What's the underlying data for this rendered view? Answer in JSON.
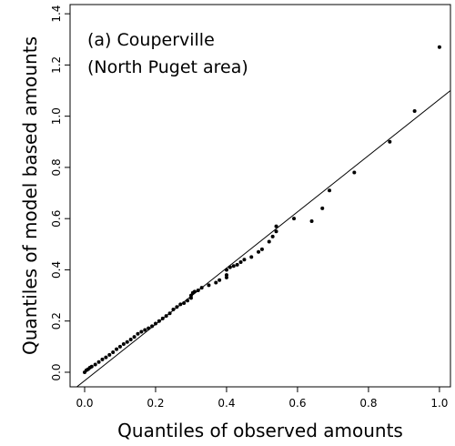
{
  "chart_data": {
    "type": "scatter",
    "xlabel": "Quantiles of observed amounts",
    "ylabel": "Quantiles of model based amounts",
    "annotations": [
      "(a) Couperville",
      "(North Puget area)"
    ],
    "color": "#000000",
    "x": [
      0.0,
      0.005,
      0.01,
      0.015,
      0.02,
      0.03,
      0.04,
      0.05,
      0.06,
      0.07,
      0.08,
      0.09,
      0.1,
      0.11,
      0.12,
      0.13,
      0.14,
      0.15,
      0.16,
      0.17,
      0.18,
      0.19,
      0.2,
      0.21,
      0.22,
      0.23,
      0.24,
      0.25,
      0.26,
      0.27,
      0.28,
      0.29,
      0.3,
      0.3,
      0.305,
      0.31,
      0.32,
      0.33,
      0.35,
      0.37,
      0.38,
      0.4,
      0.4,
      0.4,
      0.41,
      0.42,
      0.43,
      0.44,
      0.45,
      0.47,
      0.49,
      0.5,
      0.52,
      0.53,
      0.54,
      0.54,
      0.59,
      0.64,
      0.67,
      0.69,
      0.76,
      0.86,
      0.93,
      1.0
    ],
    "y": [
      0.0,
      0.008,
      0.012,
      0.018,
      0.022,
      0.03,
      0.04,
      0.05,
      0.058,
      0.068,
      0.078,
      0.09,
      0.1,
      0.11,
      0.118,
      0.128,
      0.138,
      0.15,
      0.158,
      0.165,
      0.172,
      0.18,
      0.19,
      0.2,
      0.21,
      0.22,
      0.23,
      0.245,
      0.255,
      0.265,
      0.27,
      0.28,
      0.29,
      0.3,
      0.31,
      0.315,
      0.32,
      0.33,
      0.34,
      0.35,
      0.36,
      0.37,
      0.38,
      0.4,
      0.41,
      0.415,
      0.42,
      0.43,
      0.44,
      0.45,
      0.47,
      0.48,
      0.51,
      0.53,
      0.55,
      0.57,
      0.6,
      0.59,
      0.64,
      0.71,
      0.78,
      0.9,
      1.02,
      1.27
    ],
    "line": {
      "x": [
        -0.041,
        1.031
      ],
      "y": [
        -0.078,
        1.1
      ]
    },
    "xlim": [
      -0.041,
      1.031
    ],
    "ylim": [
      -0.057,
      1.436
    ],
    "xticks": [
      {
        "value": 0,
        "label": "0.0"
      },
      0.2,
      0.4,
      0.6,
      0.8,
      {
        "value": 1,
        "label": "1.0"
      }
    ],
    "yticks": [
      {
        "value": 0,
        "label": "0.0"
      },
      0.2,
      0.4,
      0.6,
      0.8,
      {
        "value": 1,
        "label": "1.0"
      },
      1.2,
      1.4
    ]
  }
}
